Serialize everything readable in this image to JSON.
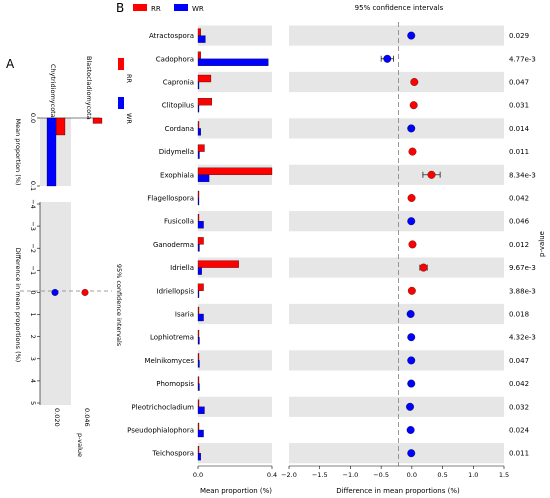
{
  "colors": {
    "rr": "#ff0000",
    "wr": "#0000ff",
    "band": "#e6e6e6",
    "dashed": "#808080"
  },
  "chart_data": [
    {
      "panel": "A",
      "type": "bar",
      "categories": [
        "Chytridiomycota",
        "Blastocladiomycota"
      ],
      "xlabel": "Mean proportion (%)",
      "ylim": [
        0.0,
        0.1
      ],
      "ticks": [
        "0.0",
        "0.1"
      ],
      "series": [
        {
          "name": "RR",
          "values": [
            0.025,
            0.008
          ]
        },
        {
          "name": "WR",
          "values": [
            0.1,
            0.0
          ]
        }
      ],
      "legend": {
        "position": "right",
        "entries": [
          "RR",
          "WR"
        ]
      },
      "diff": {
        "title": "95% confidence intervals",
        "xlabel": "Difference in mean proportions (%)",
        "range": [
          -4,
          5
        ],
        "ticks": [
          "−4",
          "−3",
          "−2",
          "−1",
          "0",
          "1",
          "2",
          "3",
          "4",
          "5"
        ],
        "values": [
          0.0,
          0.0
        ],
        "errors": [
          0.1,
          0.05
        ],
        "colors": [
          "#0000ff",
          "#ff0000"
        ]
      },
      "pvalue_label": "p-value",
      "pvalues": [
        "0.020",
        "0.046"
      ]
    },
    {
      "panel": "B",
      "type": "bar",
      "legend": {
        "position": "top-left",
        "entries": [
          "RR",
          "WR"
        ]
      },
      "ci_title": "95% confidence intervals",
      "categories": [
        "Atractospora",
        "Cadophora",
        "Capronia",
        "Clitopilus",
        "Cordana",
        "Didymella",
        "Exophiala",
        "Flagellospora",
        "Fusicolla",
        "Ganoderma",
        "Idriella",
        "Idriellopsis",
        "Isaria",
        "Lophiotrema",
        "Melnikomyces",
        "Phomopsis",
        "Pleotrichocladium",
        "Pseudophialophora",
        "Teichospora"
      ],
      "series": [
        {
          "name": "RR",
          "values": [
            0.015,
            0.015,
            0.07,
            0.075,
            0.005,
            0.035,
            0.4,
            0.005,
            0.005,
            0.03,
            0.22,
            0.03,
            0.005,
            0.005,
            0.002,
            0.002,
            0.005,
            0.005,
            0.005
          ]
        },
        {
          "name": "WR",
          "values": [
            0.04,
            0.38,
            0.005,
            0.005,
            0.015,
            0.008,
            0.06,
            0.005,
            0.03,
            0.008,
            0.02,
            0.005,
            0.03,
            0.008,
            0.008,
            0.008,
            0.035,
            0.03,
            0.015
          ]
        }
      ],
      "xlabel": "Mean proportion (%)",
      "xlim": [
        0.0,
        0.4
      ],
      "xticks": [
        "0.0",
        "0.4"
      ],
      "diff": {
        "xlabel": "Difference in mean proportions (%)",
        "xlim": [
          -2.0,
          1.5
        ],
        "xticks": [
          "−2.0",
          "−1.5",
          "−1.0",
          "−0.5",
          "0.0",
          "0.5",
          "1.0",
          "1.5"
        ],
        "values": [
          -0.01,
          -0.4,
          0.04,
          0.03,
          -0.01,
          0.01,
          0.32,
          -0.005,
          -0.01,
          0.01,
          0.19,
          0.0,
          -0.02,
          -0.01,
          -0.01,
          -0.01,
          -0.03,
          -0.02,
          -0.01
        ],
        "errors": [
          0.0,
          0.1,
          0.02,
          0.02,
          0.0,
          0.0,
          0.14,
          0.0,
          0.0,
          0.0,
          0.06,
          0.0,
          0.0,
          0.0,
          0.0,
          0.0,
          0.0,
          0.0,
          0.0
        ],
        "colors": [
          "#0000ff",
          "#0000ff",
          "#ff0000",
          "#ff0000",
          "#0000ff",
          "#ff0000",
          "#ff0000",
          "#ff0000",
          "#0000ff",
          "#ff0000",
          "#ff0000",
          "#ff0000",
          "#0000ff",
          "#0000ff",
          "#0000ff",
          "#0000ff",
          "#0000ff",
          "#0000ff",
          "#0000ff"
        ]
      },
      "pvalue_label": "p-value",
      "pvalues": [
        "0.029",
        "4.77e-3",
        "0.047",
        "0.031",
        "0.014",
        "0.011",
        "8.34e-3",
        "0.042",
        "0.046",
        "0.012",
        "9.67e-3",
        "3.88e-3",
        "0.018",
        "4.32e-3",
        "0.047",
        "0.042",
        "0.032",
        "0.024",
        "0.011"
      ]
    }
  ]
}
